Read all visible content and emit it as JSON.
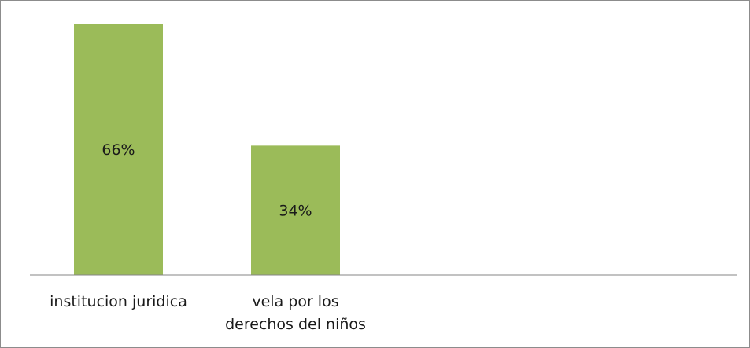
{
  "chart_data": {
    "type": "bar",
    "categories": [
      [
        "institucion juridica"
      ],
      [
        "vela por los",
        "derechos del niños"
      ]
    ],
    "values": [
      66,
      34
    ],
    "data_labels": [
      "66%",
      "34%"
    ],
    "title": "",
    "xlabel": "",
    "ylabel": "",
    "ylim": [
      0,
      70
    ],
    "grid": false,
    "legend": "none",
    "bar_color": "#9bbb59",
    "axis_color": "#868686"
  }
}
